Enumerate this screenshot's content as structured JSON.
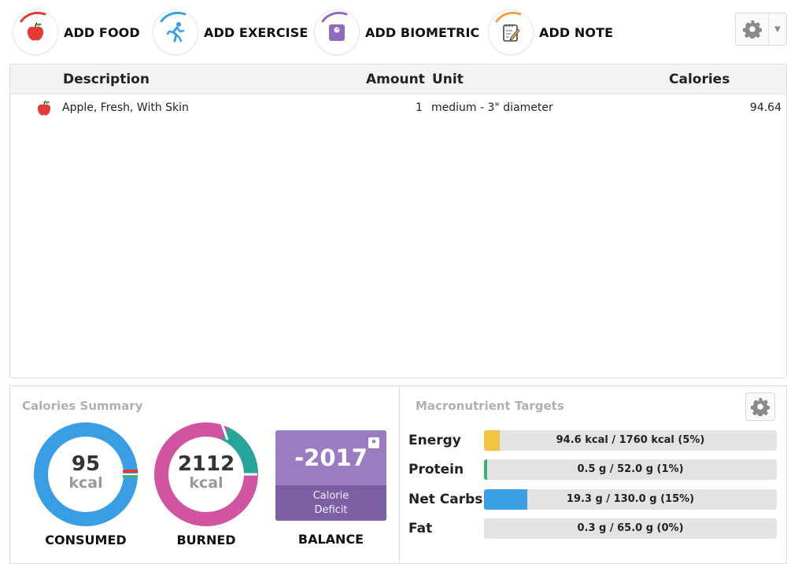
{
  "toolbar": {
    "buttons": [
      {
        "label": "ADD FOOD",
        "icon": "apple-icon",
        "accent": "#e53935"
      },
      {
        "label": "ADD EXERCISE",
        "icon": "runner-icon",
        "accent": "#3a9ee4"
      },
      {
        "label": "ADD BIOMETRIC",
        "icon": "scale-icon",
        "accent": "#8e6bbd"
      },
      {
        "label": "ADD NOTE",
        "icon": "notepad-icon",
        "accent": "#f0a040"
      }
    ],
    "settings_icon": "gear-icon",
    "dropdown_icon": "caret-down-icon"
  },
  "diary": {
    "columns": {
      "description": "Description",
      "amount": "Amount",
      "unit": "Unit",
      "calories": "Calories"
    },
    "rows": [
      {
        "icon": "apple-icon",
        "description": "Apple, Fresh, With Skin",
        "amount": "1",
        "unit": "medium - 3\" diameter",
        "calories": "94.64"
      }
    ]
  },
  "calories_summary": {
    "title": "Calories Summary",
    "consumed": {
      "value": "95",
      "unit": "kcal",
      "caption": "CONSUMED",
      "color": "#3a9ee4"
    },
    "burned": {
      "value": "2112",
      "unit": "kcal",
      "caption": "BURNED",
      "color": "#d0549f",
      "accent": "#26a69a"
    },
    "balance": {
      "value": "-2017",
      "line1": "Calorie",
      "line2": "Deficit",
      "caption": "BALANCE",
      "color": "#9a7cc0"
    }
  },
  "macros": {
    "title": "Macronutrient Targets",
    "settings_icon": "gear-icon",
    "rows": [
      {
        "label": "Energy",
        "text": "94.6 kcal / 1760 kcal (5%)",
        "fraction": 0.054,
        "color": "#f5c342"
      },
      {
        "label": "Protein",
        "text": "0.5 g / 52.0 g (1%)",
        "fraction": 0.01,
        "color": "#3bb36a"
      },
      {
        "label": "Net Carbs",
        "text": "19.3 g / 130.0 g (15%)",
        "fraction": 0.148,
        "color": "#3a9ee4"
      },
      {
        "label": "Fat",
        "text": "0.3 g / 65.0 g (0%)",
        "fraction": 0.0,
        "color": "#e0554f"
      }
    ]
  }
}
